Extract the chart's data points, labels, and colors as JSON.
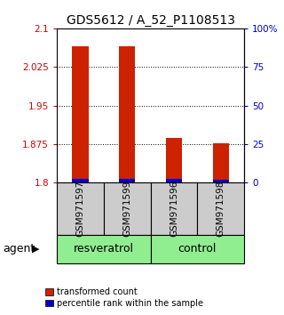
{
  "title": "GDS5612 / A_52_P1108513",
  "samples": [
    "GSM971597",
    "GSM971599",
    "GSM971596",
    "GSM971598"
  ],
  "groups": [
    {
      "label": "resveratrol",
      "indices": [
        0,
        1
      ],
      "color": "#90EE90"
    },
    {
      "label": "control",
      "indices": [
        2,
        3
      ],
      "color": "#90EE90"
    }
  ],
  "red_values": [
    2.065,
    2.065,
    1.887,
    1.877
  ],
  "blue_values": [
    1.808,
    1.808,
    1.807,
    1.806
  ],
  "bar_bottom": 1.8,
  "ylim_left": [
    1.8,
    2.1
  ],
  "yticks_left": [
    1.8,
    1.875,
    1.95,
    2.025,
    2.1
  ],
  "ytick_labels_left": [
    "1.8",
    "1.875",
    "1.95",
    "2.025",
    "2.1"
  ],
  "yticks_right": [
    0,
    25,
    50,
    75,
    100
  ],
  "ytick_labels_right": [
    "0",
    "25",
    "50",
    "75",
    "100%"
  ],
  "left_axis_color": "#cc0000",
  "right_axis_color": "#0000cc",
  "bar_width": 0.35,
  "red_color": "#cc2200",
  "blue_color": "#0000cc",
  "sample_label_bg": "#cccccc",
  "agent_label": "agent",
  "legend_red": "transformed count",
  "legend_blue": "percentile rank within the sample",
  "title_fontsize": 10,
  "grid_ticks": [
    1.875,
    1.95,
    2.025
  ]
}
